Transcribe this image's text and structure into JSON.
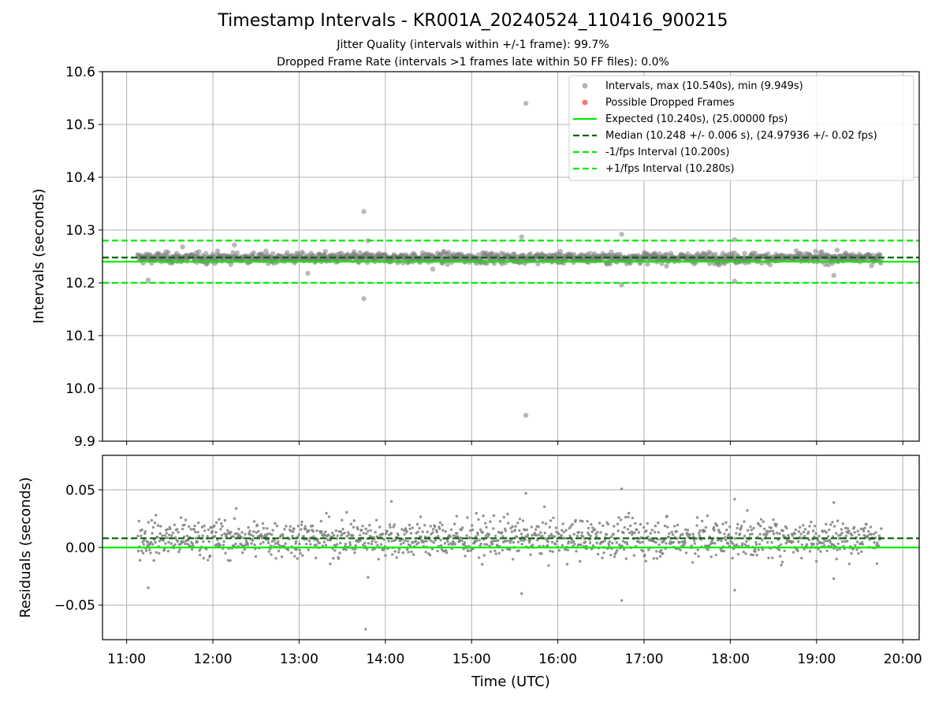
{
  "figure": {
    "title": "Timestamp Intervals - KR001A_20240524_110416_900215",
    "subtitle_1": "Jitter Quality (intervals within +/-1 frame): 99.7%",
    "subtitle_2": "Dropped Frame Rate (intervals >1 frames late within 50 FF files): 0.0%"
  },
  "colors": {
    "points": "#808080",
    "dropped": "#ff3b30",
    "expected": "#00ee00",
    "median": "#006400",
    "interval_bounds": "#00ee00",
    "grid": "#b0b0b0"
  },
  "chart_data": [
    {
      "type": "scatter",
      "xlabel": "",
      "ylabel": "Intervals (seconds)",
      "xlim": [
        10.72,
        20.19
      ],
      "ylim": [
        9.9,
        10.6
      ],
      "x_ticks": [
        11,
        12,
        13,
        14,
        15,
        16,
        17,
        18,
        19,
        20
      ],
      "x_tick_labels": [
        "11:00",
        "12:00",
        "13:00",
        "14:00",
        "15:00",
        "16:00",
        "17:00",
        "18:00",
        "19:00",
        "20:00"
      ],
      "y_ticks": [
        9.9,
        10.0,
        10.1,
        10.2,
        10.3,
        10.4,
        10.5,
        10.6
      ],
      "y_tick_labels": [
        "9.9",
        "10.0",
        "10.1",
        "10.2",
        "10.3",
        "10.4",
        "10.5",
        "10.6"
      ],
      "grid": true,
      "legend_position": "top-right",
      "series": [
        {
          "name": "Intervals, max (10.540s), min (9.949s)",
          "kind": "points",
          "x_range": [
            11.13,
            19.75
          ],
          "center": 10.247,
          "spread": 0.008,
          "notable_points": [
            {
              "x": 15.63,
              "y": 10.54
            },
            {
              "x": 15.63,
              "y": 9.949
            },
            {
              "x": 13.75,
              "y": 10.335
            },
            {
              "x": 13.75,
              "y": 10.17
            },
            {
              "x": 16.74,
              "y": 10.292
            },
            {
              "x": 15.58,
              "y": 10.287
            },
            {
              "x": 18.05,
              "y": 10.282
            },
            {
              "x": 11.25,
              "y": 10.205
            },
            {
              "x": 16.74,
              "y": 10.196
            },
            {
              "x": 19.2,
              "y": 10.214
            },
            {
              "x": 13.8,
              "y": 10.28
            },
            {
              "x": 18.05,
              "y": 10.203
            },
            {
              "x": 11.65,
              "y": 10.268
            },
            {
              "x": 12.25,
              "y": 10.272
            },
            {
              "x": 13.1,
              "y": 10.218
            },
            {
              "x": 14.55,
              "y": 10.226
            }
          ]
        },
        {
          "name": "Possible Dropped Frames",
          "kind": "points",
          "values": []
        },
        {
          "name": "Expected (10.240s), (25.00000 fps)",
          "kind": "hline",
          "y": 10.24,
          "style": "solid"
        },
        {
          "name": "Median (10.248 +/- 0.006 s), (24.97936 +/- 0.02 fps)",
          "kind": "hline",
          "y": 10.248,
          "style": "dashed"
        },
        {
          "name": "-1/fps Interval (10.200s)",
          "kind": "hline",
          "y": 10.2,
          "style": "dashed"
        },
        {
          "name": "+1/fps Interval (10.280s)",
          "kind": "hline",
          "y": 10.28,
          "style": "dashed"
        }
      ]
    },
    {
      "type": "scatter",
      "xlabel": "Time (UTC)",
      "ylabel": "Residuals (seconds)",
      "xlim": [
        10.72,
        20.19
      ],
      "ylim": [
        -0.08,
        0.08
      ],
      "x_ticks": [
        11,
        12,
        13,
        14,
        15,
        16,
        17,
        18,
        19,
        20
      ],
      "x_tick_labels": [
        "11:00",
        "12:00",
        "13:00",
        "14:00",
        "15:00",
        "16:00",
        "17:00",
        "18:00",
        "19:00",
        "20:00"
      ],
      "y_ticks": [
        -0.05,
        0.0,
        0.05
      ],
      "y_tick_labels": [
        "−0.05",
        "0.00",
        "0.05"
      ],
      "grid": true,
      "series": [
        {
          "name": "Residuals",
          "kind": "points",
          "x_range": [
            11.13,
            19.75
          ],
          "center": 0.008,
          "spread": 0.01,
          "notable_points": [
            {
              "x": 13.77,
              "y": -0.071
            },
            {
              "x": 15.63,
              "y": 0.047
            },
            {
              "x": 16.74,
              "y": 0.051
            },
            {
              "x": 16.74,
              "y": -0.046
            },
            {
              "x": 15.58,
              "y": -0.04
            },
            {
              "x": 18.05,
              "y": -0.037
            },
            {
              "x": 11.25,
              "y": -0.035
            },
            {
              "x": 19.2,
              "y": -0.027
            },
            {
              "x": 14.07,
              "y": 0.04
            },
            {
              "x": 18.05,
              "y": 0.042
            },
            {
              "x": 19.2,
              "y": 0.039
            },
            {
              "x": 13.8,
              "y": -0.026
            }
          ]
        },
        {
          "name": "Expected",
          "kind": "hline",
          "y": 0.0,
          "style": "solid"
        },
        {
          "name": "Median",
          "kind": "hline",
          "y": 0.008,
          "style": "dashed"
        }
      ]
    }
  ]
}
